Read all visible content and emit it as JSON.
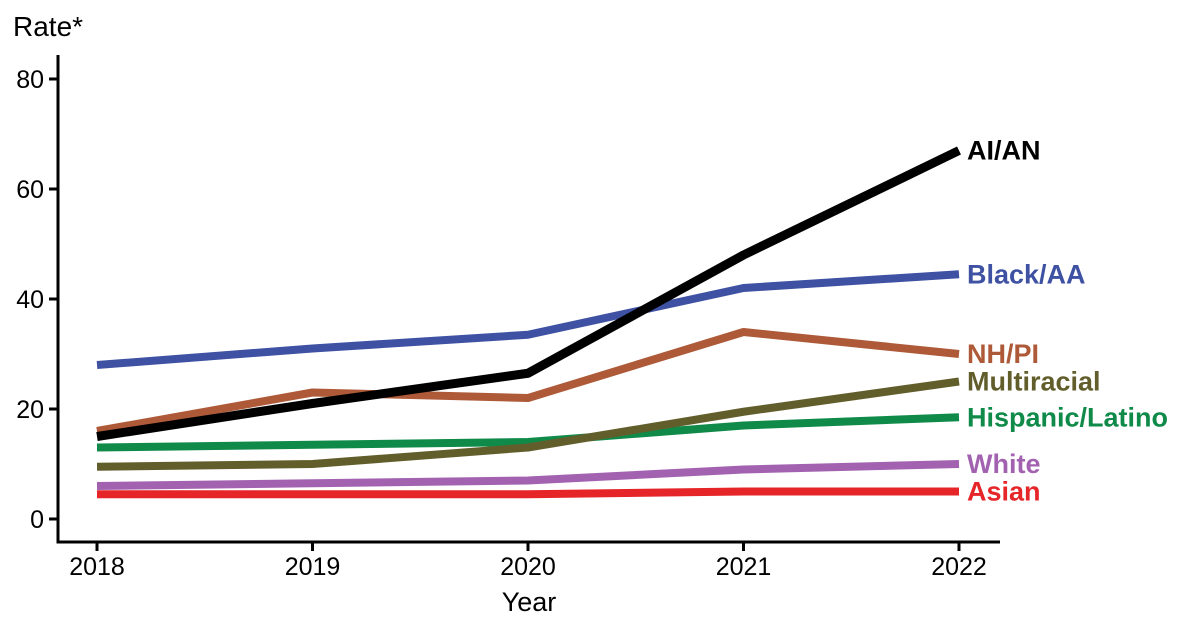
{
  "chart_data": {
    "type": "line",
    "title": "Rate*",
    "xlabel": "Year",
    "x": [
      2018,
      2019,
      2020,
      2021,
      2022
    ],
    "x_tick_labels": [
      "2018",
      "2019",
      "2020",
      "2021",
      "2022"
    ],
    "ylim": [
      0,
      80
    ],
    "yticks": [
      0,
      20,
      40,
      60,
      80
    ],
    "y_tick_labels": [
      "0",
      "20",
      "40",
      "60",
      "80"
    ],
    "grid": false,
    "legend_position": "right-end-labels",
    "axis_color": "#000000",
    "background_color": "#ffffff",
    "series": [
      {
        "name": "AI/AN",
        "color": "#000000",
        "values": [
          15,
          21,
          26.5,
          48,
          67
        ]
      },
      {
        "name": "Black/AA",
        "color": "#3E51A3",
        "values": [
          28,
          31,
          33.5,
          42,
          44.5
        ]
      },
      {
        "name": "NH/PI",
        "color": "#AE5A38",
        "values": [
          16,
          23,
          22,
          34,
          30
        ]
      },
      {
        "name": "Multiracial",
        "color": "#625E2C",
        "values": [
          9.5,
          10,
          13,
          19.5,
          25
        ]
      },
      {
        "name": "Hispanic/Latino",
        "color": "#0F8A49",
        "values": [
          13,
          13.5,
          14,
          17,
          18.5
        ]
      },
      {
        "name": "White",
        "color": "#A262B0",
        "values": [
          6,
          6.5,
          7,
          9,
          10
        ]
      },
      {
        "name": "Asian",
        "color": "#E62529",
        "values": [
          4.5,
          4.5,
          4.5,
          5,
          5
        ]
      }
    ]
  }
}
